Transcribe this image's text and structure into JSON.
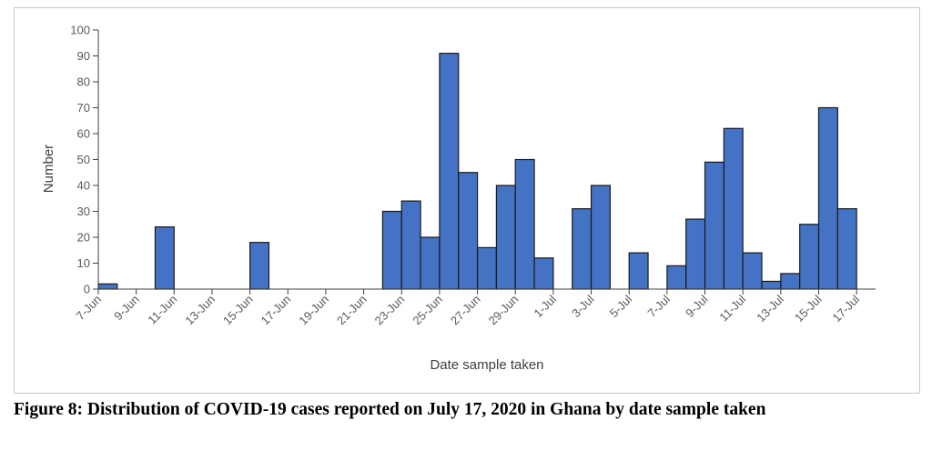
{
  "caption": "Figure 8: Distribution of COVID-19 cases reported on July 17, 2020 in Ghana by date sample taken",
  "chart_data": {
    "type": "bar",
    "title": "",
    "xlabel": "Date sample taken",
    "ylabel": "Number",
    "ylim": [
      0,
      100
    ],
    "yticks": [
      0,
      10,
      20,
      30,
      40,
      50,
      60,
      70,
      80,
      90,
      100
    ],
    "grid": false,
    "bar_color": "#4472C4",
    "categories": [
      "7-Jun",
      "8-Jun",
      "9-Jun",
      "10-Jun",
      "11-Jun",
      "12-Jun",
      "13-Jun",
      "14-Jun",
      "15-Jun",
      "16-Jun",
      "17-Jun",
      "18-Jun",
      "19-Jun",
      "20-Jun",
      "21-Jun",
      "22-Jun",
      "23-Jun",
      "24-Jun",
      "25-Jun",
      "26-Jun",
      "27-Jun",
      "28-Jun",
      "29-Jun",
      "30-Jun",
      "1-Jul",
      "2-Jul",
      "3-Jul",
      "4-Jul",
      "5-Jul",
      "6-Jul",
      "7-Jul",
      "8-Jul",
      "9-Jul",
      "10-Jul",
      "11-Jul",
      "12-Jul",
      "13-Jul",
      "14-Jul",
      "15-Jul",
      "16-Jul",
      "17-Jul"
    ],
    "tick_labels": [
      "7-Jun",
      "9-Jun",
      "11-Jun",
      "13-Jun",
      "15-Jun",
      "17-Jun",
      "19-Jun",
      "21-Jun",
      "23-Jun",
      "25-Jun",
      "27-Jun",
      "29-Jun",
      "1-Jul",
      "3-Jul",
      "5-Jul",
      "7-Jul",
      "9-Jul",
      "11-Jul",
      "13-Jul",
      "15-Jul",
      "17-Jul"
    ],
    "values": [
      2,
      0,
      0,
      24,
      0,
      0,
      0,
      0,
      18,
      0,
      0,
      0,
      0,
      0,
      0,
      30,
      34,
      20,
      91,
      45,
      16,
      40,
      50,
      12,
      0,
      31,
      40,
      0,
      14,
      0,
      9,
      27,
      49,
      62,
      14,
      3,
      6,
      25,
      70,
      31,
      0
    ]
  }
}
